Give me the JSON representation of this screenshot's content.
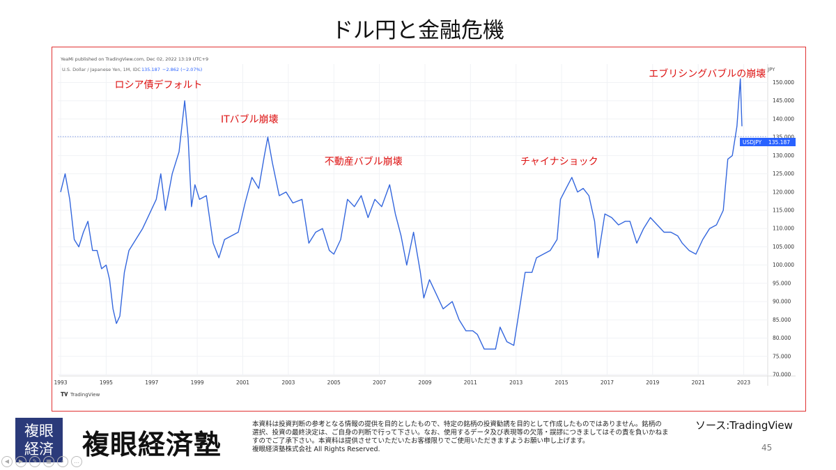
{
  "slide": {
    "title": "ドル円と金融危機",
    "source": "ソース:TradingView",
    "page_number": "45"
  },
  "tradingview": {
    "publish_line": "YeaMi published on TradingView.com, Dec 02, 2022 13:19 UTC+9",
    "symbol_line": "U.S. Dollar / Japanese Yen, 1M, IDC",
    "price": "135.187",
    "change": "−2.862 (−2.07%)",
    "currency": "JPY",
    "ticker": "USDJPY",
    "ticker_value": "135.187",
    "watermark": "TradingView"
  },
  "footer": {
    "logo_box_line1": "複眼",
    "logo_box_line2": "経済",
    "logo_text": "複眼経済塾",
    "disclaimer_1": "本資料は投資判断の参考となる情報の提供を目的としたもので、特定の銘柄の投資勧誘を目的として作成したものではありません。銘柄の",
    "disclaimer_2": "選択、投資の最終決定は、ご自身の判断で行って下さい。なお、使用するデータ及び表現等の欠落・誤謬につきましてはその責を負いかねま",
    "disclaimer_3": "すのでご了承下さい。本資料は提供させていただいたお客様限りでご使用いただきますようお願い申し上げます。",
    "disclaimer_4": "複眼経済塾株式会社 All Rights Reserved."
  },
  "colors": {
    "line": "#3366dd",
    "annotation": "#dd1111",
    "frame": "#e03030",
    "ticker_bg": "#2962ff"
  },
  "chart_data": {
    "type": "line",
    "title": "",
    "xlabel": "",
    "ylabel": "JPY",
    "xlim": [
      1993.0,
      2023.9
    ],
    "ylim": [
      70,
      152
    ],
    "x_ticks": [
      "1993",
      "1995",
      "1997",
      "1999",
      "2001",
      "2003",
      "2005",
      "2007",
      "2009",
      "2011",
      "2013",
      "2015",
      "2017",
      "2019",
      "2021",
      "2023"
    ],
    "y_ticks": [
      "70.000",
      "75.000",
      "80.000",
      "85.000",
      "90.000",
      "95.000",
      "100.000",
      "105.000",
      "110.000",
      "115.000",
      "120.000",
      "125.000",
      "130.000",
      "135.000",
      "140.000",
      "145.000",
      "150.000"
    ],
    "current_value": 135.187,
    "grid": true,
    "annotations": [
      {
        "text": "ロシア債デフォルト",
        "x": 1997.3,
        "y": 148.5
      },
      {
        "text": "ITバブル崩壊",
        "x": 2001.3,
        "y": 139.0
      },
      {
        "text": "不動産バブル崩壊",
        "x": 2006.3,
        "y": 127.5
      },
      {
        "text": "チャイナショック",
        "x": 2014.9,
        "y": 127.5
      },
      {
        "text": "エブリシングバブルの崩壊",
        "x": 2021.4,
        "y": 151.5
      }
    ],
    "series": [
      {
        "x": [
          1993.0,
          1993.2,
          1993.4,
          1993.6,
          1993.8,
          1994.0,
          1994.2,
          1994.4,
          1994.6,
          1994.8,
          1995.0,
          1995.15,
          1995.3,
          1995.45,
          1995.6,
          1995.8,
          1996.0,
          1996.3,
          1996.6,
          1996.9,
          1997.2,
          1997.4,
          1997.6,
          1997.9,
          1998.2,
          1998.45,
          1998.6,
          1998.75,
          1998.9,
          1999.1,
          1999.4,
          1999.7,
          1999.95,
          2000.2,
          2000.5,
          2000.8,
          2001.1,
          2001.4,
          2001.7,
          2001.95,
          2002.1,
          2002.3,
          2002.6,
          2002.9,
          2003.2,
          2003.6,
          2003.9,
          2004.2,
          2004.5,
          2004.8,
          2005.0,
          2005.3,
          2005.6,
          2005.9,
          2006.2,
          2006.5,
          2006.8,
          2007.1,
          2007.45,
          2007.7,
          2007.95,
          2008.2,
          2008.5,
          2008.8,
          2008.95,
          2009.2,
          2009.5,
          2009.8,
          2010.2,
          2010.5,
          2010.8,
          2011.1,
          2011.3,
          2011.6,
          2011.9,
          2012.1,
          2012.3,
          2012.6,
          2012.9,
          2013.2,
          2013.4,
          2013.7,
          2013.9,
          2014.2,
          2014.5,
          2014.8,
          2014.95,
          2015.2,
          2015.45,
          2015.7,
          2015.95,
          2016.2,
          2016.45,
          2016.6,
          2016.9,
          2017.2,
          2017.5,
          2017.8,
          2018.0,
          2018.3,
          2018.6,
          2018.9,
          2019.2,
          2019.5,
          2019.8,
          2020.1,
          2020.3,
          2020.6,
          2020.9,
          2021.2,
          2021.5,
          2021.8,
          2022.1,
          2022.3,
          2022.5,
          2022.7,
          2022.85,
          2022.92
        ],
        "y": [
          120,
          125,
          118,
          107,
          105,
          109,
          112,
          104,
          104,
          99,
          100,
          96,
          88,
          84,
          86,
          98,
          104,
          107,
          110,
          114,
          118,
          125,
          115,
          125,
          131,
          145,
          135,
          116,
          122,
          118,
          119,
          106,
          102,
          107,
          108,
          109,
          117,
          124,
          121,
          130,
          135,
          128,
          119,
          120,
          117,
          118,
          106,
          109,
          110,
          104,
          103,
          107,
          118,
          116,
          119,
          113,
          118,
          116,
          122,
          114,
          108,
          100,
          109,
          98,
          91,
          96,
          92,
          88,
          90,
          85,
          82,
          82,
          81,
          77,
          77,
          77,
          83,
          79,
          78,
          90,
          98,
          98,
          102,
          103,
          104,
          107,
          118,
          121,
          124,
          120,
          121,
          119,
          112,
          102,
          114,
          113,
          111,
          112,
          112,
          106,
          110,
          113,
          111,
          109,
          109,
          108,
          106,
          104,
          103,
          107,
          110,
          111,
          115,
          129,
          130,
          138,
          151,
          138
        ]
      }
    ]
  }
}
